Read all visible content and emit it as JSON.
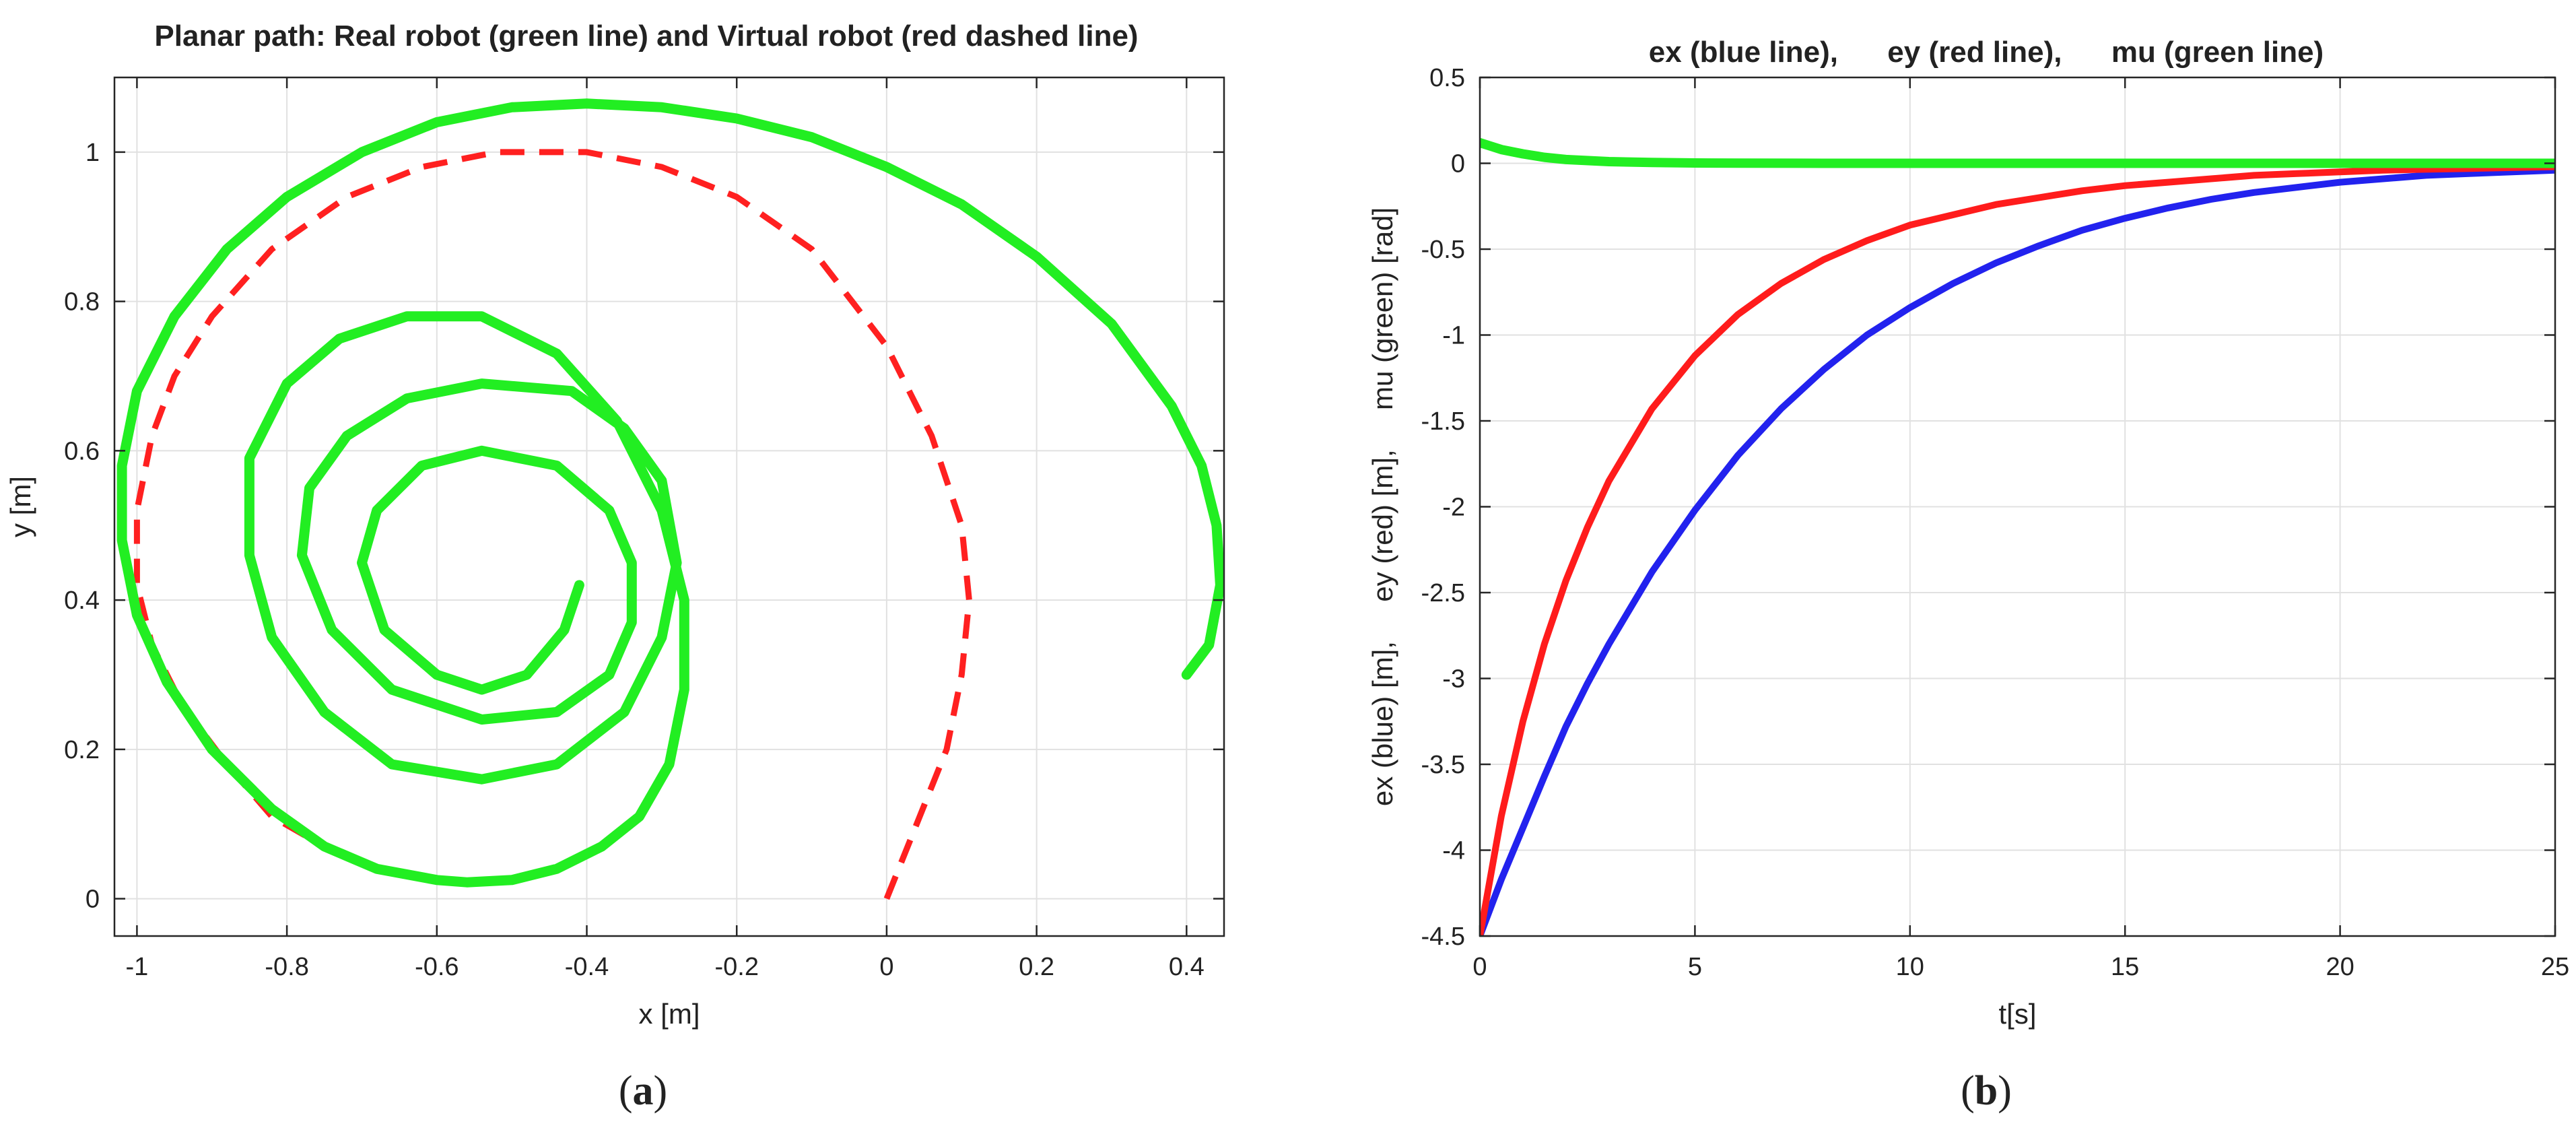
{
  "panels": [
    {
      "id": "a",
      "caption_open": "(",
      "caption_letter": "a",
      "caption_close": ")",
      "chart_data": {
        "type": "line",
        "title": "Planar path: Real robot (green line) and Virtual robot (red dashed line)",
        "xlabel": "x [m]",
        "ylabel": "y [m]",
        "xlim": [
          -1.03,
          0.45
        ],
        "ylim": [
          -0.05,
          1.1
        ],
        "xticks": [
          -1,
          -0.8,
          -0.6,
          -0.4,
          -0.2,
          0,
          0.2,
          0.4
        ],
        "xtick_labels": [
          "-1",
          "-0.8",
          "-0.6",
          "-0.4",
          "-0.2",
          "0",
          "0.2",
          "0.4"
        ],
        "yticks": [
          0,
          0.2,
          0.4,
          0.6,
          0.8,
          1
        ],
        "ytick_labels": [
          "0",
          "0.2",
          "0.4",
          "0.6",
          "0.8",
          "1"
        ],
        "grid": true,
        "series": [
          {
            "color": "#ff2020",
            "dashed": true,
            "width": 9,
            "x": [
              0,
              0.04,
              0.08,
              0.1,
              0.11,
              0.1,
              0.06,
              0,
              -0.1,
              -0.2,
              -0.3,
              -0.4,
              -0.52,
              -0.62,
              -0.72,
              -0.82,
              -0.9,
              -0.95,
              -0.98,
              -1.0,
              -1.0,
              -0.98,
              -0.94,
              -0.88,
              -0.82,
              -0.75,
              -0.68,
              -0.6,
              -0.56,
              -0.5,
              -0.44,
              -0.38,
              -0.33,
              -0.29,
              -0.27,
              -0.27,
              -0.3,
              -0.36,
              -0.44,
              -0.54,
              -0.64,
              -0.73,
              -0.8,
              -0.85,
              -0.85,
              -0.82,
              -0.75,
              -0.66,
              -0.54,
              -0.44,
              -0.35,
              -0.3,
              -0.28,
              -0.3,
              -0.35,
              -0.42,
              -0.54,
              -0.64,
              -0.72,
              -0.77,
              -0.78,
              -0.74,
              -0.66,
              -0.54,
              -0.44,
              -0.37,
              -0.34,
              -0.34,
              -0.37,
              -0.44,
              -0.54,
              -0.62,
              -0.68,
              -0.7,
              -0.67,
              -0.6,
              -0.54,
              -0.48,
              -0.43,
              -0.41
            ],
            "y": [
              0,
              0.1,
              0.2,
              0.3,
              0.4,
              0.5,
              0.62,
              0.74,
              0.87,
              0.94,
              0.98,
              1.0,
              1.0,
              0.98,
              0.94,
              0.87,
              0.78,
              0.7,
              0.62,
              0.52,
              0.42,
              0.34,
              0.26,
              0.18,
              0.11,
              0.07,
              0.04,
              0.025,
              0.022,
              0.025,
              0.04,
              0.07,
              0.11,
              0.18,
              0.28,
              0.4,
              0.52,
              0.64,
              0.73,
              0.78,
              0.78,
              0.75,
              0.69,
              0.59,
              0.46,
              0.35,
              0.25,
              0.18,
              0.16,
              0.18,
              0.25,
              0.35,
              0.45,
              0.56,
              0.63,
              0.68,
              0.69,
              0.67,
              0.62,
              0.55,
              0.46,
              0.36,
              0.28,
              0.24,
              0.25,
              0.3,
              0.37,
              0.45,
              0.52,
              0.58,
              0.6,
              0.58,
              0.52,
              0.45,
              0.36,
              0.3,
              0.28,
              0.3,
              0.36,
              0.42
            ]
          },
          {
            "color": "#22ee22",
            "dashed": false,
            "width": 15,
            "x": [
              0.4,
              0.43,
              0.445,
              0.44,
              0.42,
              0.38,
              0.3,
              0.2,
              0.1,
              0,
              -0.1,
              -0.2,
              -0.3,
              -0.4,
              -0.5,
              -0.6,
              -0.7,
              -0.8,
              -0.88,
              -0.95,
              -1.0,
              -1.02,
              -1.02,
              -1.0,
              -0.96,
              -0.9,
              -0.82,
              -0.75,
              -0.68,
              -0.6,
              -0.56,
              -0.5,
              -0.44,
              -0.38,
              -0.33,
              -0.29,
              -0.27,
              -0.27,
              -0.3,
              -0.36,
              -0.44,
              -0.54,
              -0.64,
              -0.73,
              -0.8,
              -0.85,
              -0.85,
              -0.82,
              -0.75,
              -0.66,
              -0.54,
              -0.44,
              -0.35,
              -0.3,
              -0.28,
              -0.3,
              -0.35,
              -0.42,
              -0.54,
              -0.64,
              -0.72,
              -0.77,
              -0.78,
              -0.74,
              -0.66,
              -0.54,
              -0.44,
              -0.37,
              -0.34,
              -0.34,
              -0.37,
              -0.44,
              -0.54,
              -0.62,
              -0.68,
              -0.7,
              -0.67,
              -0.6,
              -0.54,
              -0.48,
              -0.43,
              -0.41
            ],
            "y": [
              0.3,
              0.34,
              0.42,
              0.5,
              0.58,
              0.66,
              0.77,
              0.86,
              0.93,
              0.98,
              1.02,
              1.045,
              1.06,
              1.065,
              1.06,
              1.04,
              1.0,
              0.94,
              0.87,
              0.78,
              0.68,
              0.58,
              0.48,
              0.38,
              0.29,
              0.2,
              0.12,
              0.07,
              0.04,
              0.025,
              0.022,
              0.025,
              0.04,
              0.07,
              0.11,
              0.18,
              0.28,
              0.4,
              0.52,
              0.64,
              0.73,
              0.78,
              0.78,
              0.75,
              0.69,
              0.59,
              0.46,
              0.35,
              0.25,
              0.18,
              0.16,
              0.18,
              0.25,
              0.35,
              0.45,
              0.56,
              0.63,
              0.68,
              0.69,
              0.67,
              0.62,
              0.55,
              0.46,
              0.36,
              0.28,
              0.24,
              0.25,
              0.3,
              0.37,
              0.45,
              0.52,
              0.58,
              0.6,
              0.58,
              0.52,
              0.45,
              0.36,
              0.3,
              0.28,
              0.3,
              0.36,
              0.42
            ]
          }
        ]
      }
    },
    {
      "id": "b",
      "caption_open": "(",
      "caption_letter": "b",
      "caption_close": ")",
      "chart_data": {
        "type": "line",
        "title": "ex (blue line),      ey (red line),      mu (green line)",
        "xlabel": "t[s]",
        "ylabel": "ex (blue) [m],     ey (red) [m],     mu (green) [rad]",
        "xlim": [
          0,
          25
        ],
        "ylim": [
          -4.5,
          0.5
        ],
        "xticks": [
          0,
          5,
          10,
          15,
          20,
          25
        ],
        "xtick_labels": [
          "0",
          "5",
          "10",
          "15",
          "20",
          "25"
        ],
        "yticks": [
          0.5,
          0,
          -0.5,
          -1,
          -1.5,
          -2,
          -2.5,
          -3,
          -3.5,
          -4,
          -4.5
        ],
        "ytick_labels": [
          "0.5",
          "0",
          "-0.5",
          "-1",
          "-1.5",
          "-2",
          "-2.5",
          "-3",
          "-3.5",
          "-4",
          "-4.5"
        ],
        "grid": true,
        "series": [
          {
            "color": "#2222ee",
            "dashed": false,
            "width": 10,
            "x": [
              0,
              0.5,
              1,
              1.5,
              2,
              2.5,
              3,
              4,
              5,
              6,
              7,
              8,
              9,
              10,
              11,
              12,
              13,
              14,
              15,
              16,
              17,
              18,
              19,
              20,
              21,
              22,
              23,
              24,
              25
            ],
            "y": [
              -4.5,
              -4.17,
              -3.87,
              -3.57,
              -3.28,
              -3.03,
              -2.8,
              -2.38,
              -2.02,
              -1.7,
              -1.43,
              -1.2,
              -1.0,
              -0.84,
              -0.7,
              -0.58,
              -0.48,
              -0.39,
              -0.32,
              -0.26,
              -0.21,
              -0.17,
              -0.14,
              -0.11,
              -0.09,
              -0.07,
              -0.06,
              -0.05,
              -0.04
            ]
          },
          {
            "color": "#ff1c1c",
            "dashed": false,
            "width": 10,
            "x": [
              0,
              0.5,
              1,
              1.5,
              2,
              2.5,
              3,
              4,
              5,
              6,
              7,
              8,
              9,
              10,
              11,
              12,
              13,
              14,
              15,
              16,
              17,
              18,
              19,
              20,
              21,
              22,
              23,
              24,
              25
            ],
            "y": [
              -4.5,
              -3.8,
              -3.25,
              -2.8,
              -2.43,
              -2.12,
              -1.85,
              -1.43,
              -1.12,
              -0.88,
              -0.7,
              -0.56,
              -0.45,
              -0.36,
              -0.3,
              -0.24,
              -0.2,
              -0.16,
              -0.13,
              -0.11,
              -0.09,
              -0.07,
              -0.06,
              -0.05,
              -0.04,
              -0.035,
              -0.03,
              -0.025,
              -0.02
            ]
          },
          {
            "color": "#22ee22",
            "dashed": false,
            "width": 14,
            "x": [
              0,
              0.25,
              0.5,
              1,
              1.5,
              2,
              3,
              4,
              5,
              6,
              8,
              10,
              15,
              20,
              25
            ],
            "y": [
              0.12,
              0.1,
              0.08,
              0.055,
              0.035,
              0.022,
              0.01,
              0.005,
              0.002,
              0.001,
              0,
              0,
              0,
              0,
              0
            ]
          }
        ]
      }
    }
  ]
}
